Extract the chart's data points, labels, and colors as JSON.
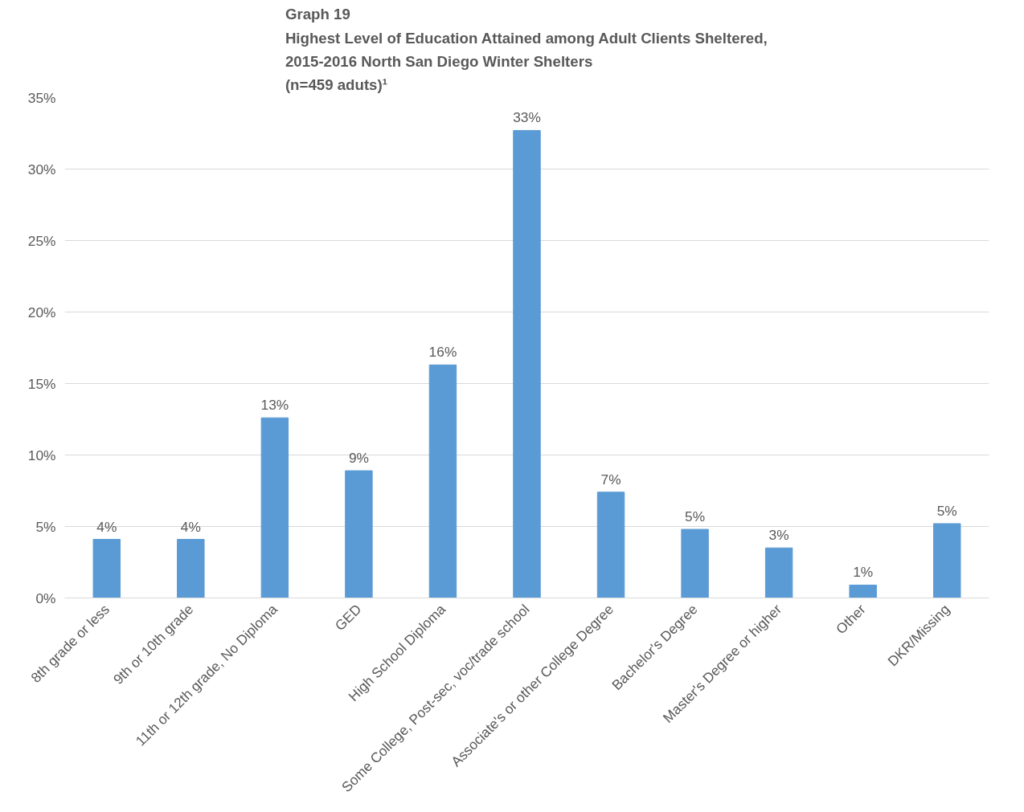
{
  "chart_data": {
    "type": "bar",
    "title": "Graph 19\nHighest Level of Education Attained among Adult Clients Sheltered,\n2015-2016 North San Diego Winter Shelters\n(n=459 aduts)¹",
    "categories": [
      "8th grade or less",
      "9th or 10th grade",
      "11th or 12th grade, No Diploma",
      "GED",
      "High School Diploma",
      "Some College, Post-sec, voc/trade school",
      "Associate's or other College Degree",
      "Bachelor's Degree",
      "Master's Degree or higher",
      "Other",
      "DKR/Missing"
    ],
    "values": [
      4.1,
      4.1,
      12.6,
      8.9,
      16.3,
      32.7,
      7.4,
      4.8,
      3.5,
      0.9,
      5.2
    ],
    "value_labels": [
      "4%",
      "4%",
      "13%",
      "9%",
      "16%",
      "33%",
      "7%",
      "5%",
      "3%",
      "1%",
      "5%"
    ],
    "color": "#5b9bd5",
    "ylim": [
      0,
      35
    ],
    "yticks": [
      {
        "value": 0,
        "label": "0%"
      },
      {
        "value": 5,
        "label": "5%"
      },
      {
        "value": 10,
        "label": "10%"
      },
      {
        "value": 15,
        "label": "15%"
      },
      {
        "value": 20,
        "label": "20%"
      },
      {
        "value": 25,
        "label": "25%"
      },
      {
        "value": 30,
        "label": "30%"
      },
      {
        "value": 35,
        "label": "35%"
      }
    ],
    "grid": "y"
  }
}
